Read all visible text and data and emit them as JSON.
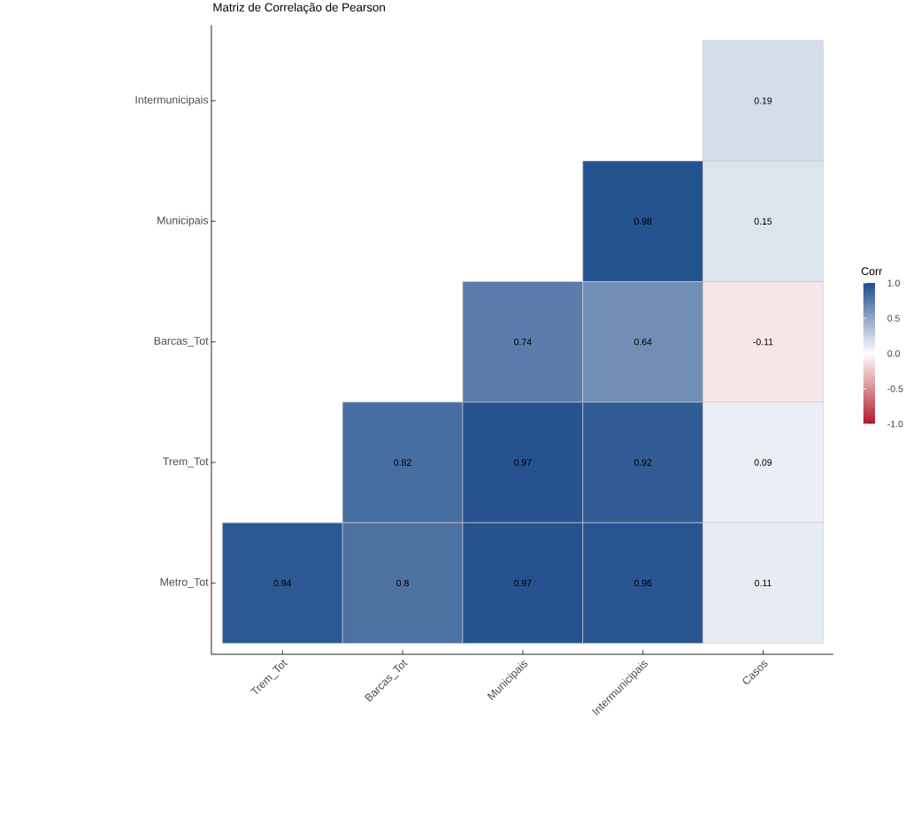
{
  "chart_data": {
    "type": "heatmap",
    "title": "Matriz de Correlação de Pearson",
    "clabel": "Corr",
    "categories": [
      "Trem_Tot",
      "Barcas_Tot",
      "Municipais",
      "Intermunicipais",
      "Casos"
    ],
    "y_categories": [
      "Intermunicipais",
      "Municipais",
      "Barcas_Tot",
      "Trem_Tot",
      "Metro_Tot"
    ],
    "cells": [
      [
        null,
        null,
        null,
        null,
        0.19
      ],
      [
        null,
        null,
        null,
        0.98,
        0.15
      ],
      [
        null,
        null,
        0.74,
        0.64,
        -0.11
      ],
      [
        null,
        0.82,
        0.97,
        0.92,
        0.09
      ],
      [
        0.94,
        0.8,
        0.97,
        0.96,
        0.11
      ]
    ],
    "data_labels": true,
    "clim": [
      -1,
      1
    ],
    "cticks": [
      {
        "value": -1,
        "label": "-1.0"
      },
      {
        "value": -0.5,
        "label": "-0.5"
      },
      {
        "value": 0,
        "label": "0.0"
      },
      {
        "value": 0.5,
        "label": "0.5"
      },
      {
        "value": 1,
        "label": "1.0"
      }
    ],
    "grid": false
  }
}
